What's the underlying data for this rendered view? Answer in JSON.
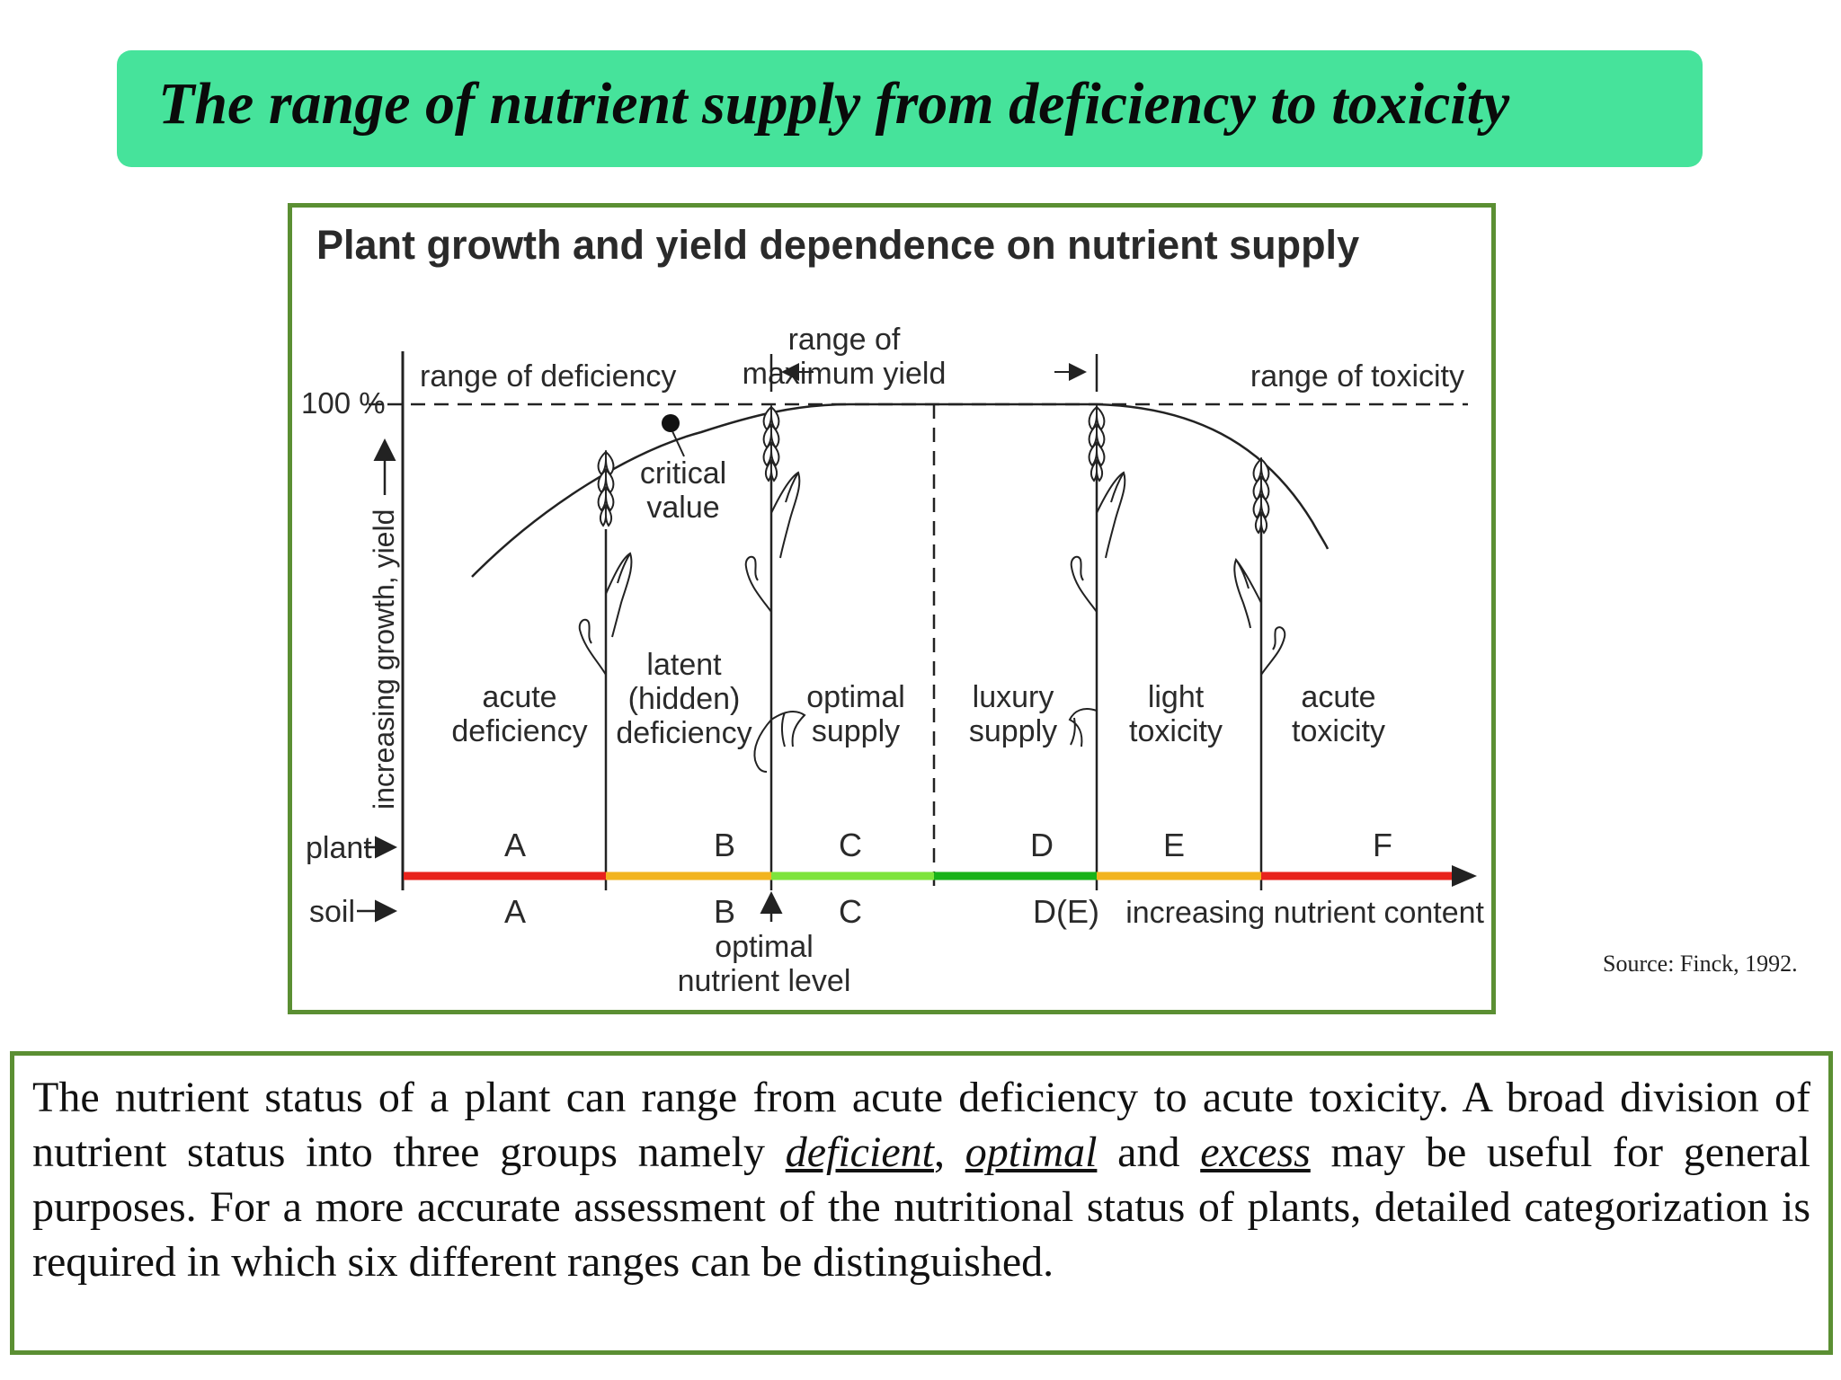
{
  "header": {
    "title": "The range of nutrient supply from deficiency to toxicity"
  },
  "figure": {
    "title": "Plant growth and yield dependence on nutrient supply",
    "y_axis_label": "increasing growth, yield",
    "y_tick_100": "100 %",
    "range_deficiency": "range of deficiency",
    "range_max_yield_line1": "range of",
    "range_max_yield_line2": "maximum yield",
    "range_toxicity": "range of toxicity",
    "critical_value_line1": "critical",
    "critical_value_line2": "value",
    "zones": [
      {
        "line1": "",
        "line2": "acute",
        "line3": "deficiency"
      },
      {
        "line1": "latent",
        "line2": "(hidden)",
        "line3": "deficiency"
      },
      {
        "line1": "",
        "line2": "optimal",
        "line3": "supply"
      },
      {
        "line1": "",
        "line2": "luxury",
        "line3": "supply"
      },
      {
        "line1": "",
        "line2": "light",
        "line3": "toxicity"
      },
      {
        "line1": "",
        "line2": "acute",
        "line3": "toxicity"
      }
    ],
    "plant_row_label": "plant",
    "soil_row_label": "soil",
    "plant_letters": [
      "A",
      "B",
      "C",
      "D",
      "E",
      "F"
    ],
    "soil_letters": [
      "A",
      "B",
      "C",
      "D(E)"
    ],
    "x_axis_label": "increasing nutrient content",
    "optimal_level_line1": "optimal",
    "optimal_level_line2": "nutrient level",
    "segment_colors": [
      "#e8231c",
      "#f2b41f",
      "#7ee43c",
      "#19b219",
      "#f2b41f",
      "#e8231c"
    ]
  },
  "source": "Source: Finck, 1992.",
  "body_text": {
    "part1": "The nutrient status of a plant can range from acute deficiency to acute toxicity. A broad division of nutrient status into three groups namely ",
    "em1": "deficient",
    "sep1": ", ",
    "em2": "optimal",
    "part2": " and ",
    "em3": "excess",
    "part3": " may be useful for general purposes. For a more accurate assessment of the nutritional status of plants, detailed categorization is required in which six different ranges can be distinguished."
  }
}
